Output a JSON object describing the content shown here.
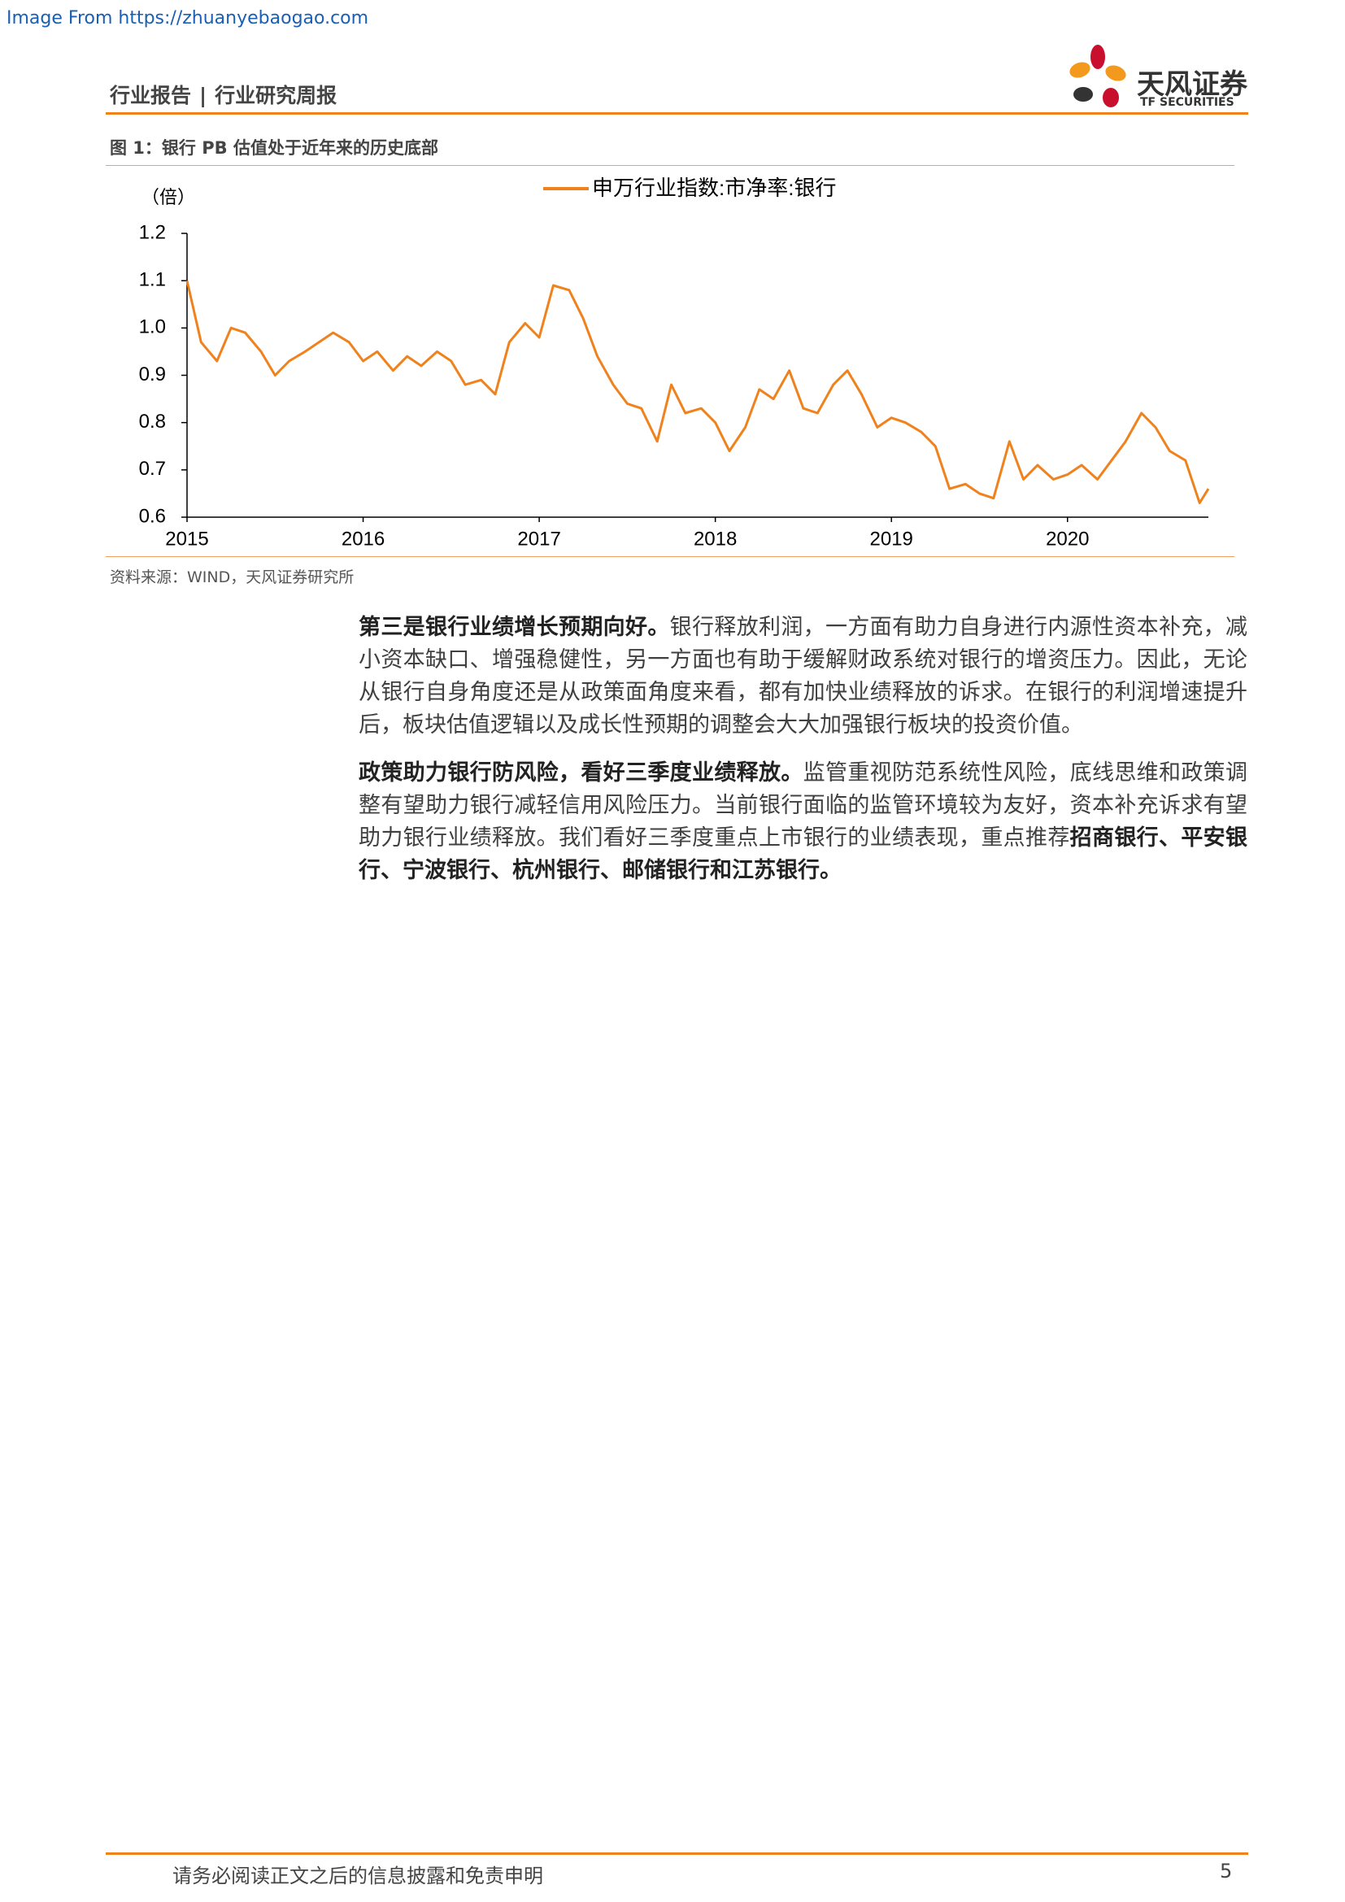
{
  "source_banner": "Image From https://zhuanyebaogao.com",
  "header": {
    "title": "行业报告",
    "subtitle": "行业研究周报",
    "logo_text": "天风证券",
    "logo_sub": "TF SECURITIES"
  },
  "figure": {
    "caption": "图 1：银行 PB 估值处于近年来的历史底部",
    "source": "资料来源：WIND，天风证券研究所"
  },
  "chart_data": {
    "type": "line",
    "y_label": "（倍）",
    "x": [
      2015.0,
      2015.08,
      2015.17,
      2015.25,
      2015.33,
      2015.42,
      2015.5,
      2015.58,
      2015.67,
      2015.75,
      2015.83,
      2015.92,
      2016.0,
      2016.08,
      2016.17,
      2016.25,
      2016.33,
      2016.42,
      2016.5,
      2016.58,
      2016.67,
      2016.75,
      2016.83,
      2016.92,
      2017.0,
      2017.08,
      2017.17,
      2017.25,
      2017.33,
      2017.42,
      2017.5,
      2017.58,
      2017.67,
      2017.75,
      2017.83,
      2017.92,
      2018.0,
      2018.08,
      2018.17,
      2018.25,
      2018.33,
      2018.42,
      2018.5,
      2018.58,
      2018.67,
      2018.75,
      2018.83,
      2018.92,
      2019.0,
      2019.08,
      2019.17,
      2019.25,
      2019.33,
      2019.42,
      2019.5,
      2019.58,
      2019.67,
      2019.75,
      2019.83,
      2019.92,
      2020.0,
      2020.08,
      2020.17,
      2020.25,
      2020.33,
      2020.42,
      2020.5,
      2020.58,
      2020.67,
      2020.75,
      2020.8
    ],
    "series": [
      {
        "name": "申万行业指数:市净率:银行",
        "color": "#f0821e",
        "values": [
          1.1,
          0.97,
          0.93,
          1.0,
          0.99,
          0.95,
          0.9,
          0.93,
          0.95,
          0.97,
          0.99,
          0.97,
          0.93,
          0.95,
          0.91,
          0.94,
          0.92,
          0.95,
          0.93,
          0.88,
          0.89,
          0.86,
          0.97,
          1.01,
          0.98,
          1.09,
          1.08,
          1.02,
          0.94,
          0.88,
          0.84,
          0.83,
          0.76,
          0.88,
          0.82,
          0.83,
          0.8,
          0.74,
          0.79,
          0.87,
          0.85,
          0.91,
          0.83,
          0.82,
          0.88,
          0.91,
          0.86,
          0.79,
          0.81,
          0.8,
          0.78,
          0.75,
          0.66,
          0.67,
          0.65,
          0.64,
          0.76,
          0.68,
          0.71,
          0.68,
          0.69,
          0.71,
          0.68,
          0.72,
          0.76,
          0.82,
          0.79,
          0.74,
          0.72,
          0.63,
          0.66
        ]
      }
    ],
    "xlim": [
      2015,
      2020.8
    ],
    "xticks": [
      2015,
      2016,
      2017,
      2018,
      2019,
      2020
    ],
    "ylim": [
      0.6,
      1.2
    ],
    "yticks": [
      0.6,
      0.7,
      0.8,
      0.9,
      {
        "value": 1,
        "label": "1.0"
      },
      1.1,
      1.2
    ],
    "legend": "top"
  },
  "paragraphs": [
    {
      "bold": "第三是银行业绩增长预期向好。",
      "text": "银行释放利润，一方面有助力自身进行内源性资本补充，减小资本缺口、增强稳健性，另一方面也有助于缓解财政系统对银行的增资压力。因此，无论从银行自身角度还是从政策面角度来看，都有加快业绩释放的诉求。在银行的利润增速提升后，板块估值逻辑以及成长性预期的调整会大大加强银行板块的投资价值。"
    },
    {
      "bold": "政策助力银行防风险，看好三季度业绩释放。",
      "text": "监管重视防范系统性风险，底线思维和政策调整有望助力银行减轻信用风险压力。当前银行面临的监管环境较为友好，资本补充诉求有望助力银行业绩释放。我们看好三季度重点上市银行的业绩表现，重点推荐",
      "bold_end": "招商银行、平安银行、宁波银行、杭州银行、邮储银行和江苏银行。"
    }
  ],
  "footer": {
    "disclaimer": "请务必阅读正文之后的信息披露和免责申明",
    "page": "5"
  }
}
